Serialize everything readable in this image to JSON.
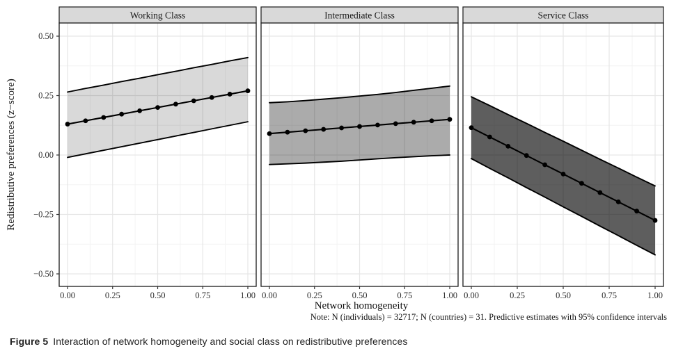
{
  "figure": {
    "caption_label": "Figure 5",
    "caption_text": "Interaction of network homogeneity and social class on redistributive preferences"
  },
  "chart_data": {
    "type": "line",
    "description": "Faceted line chart with 95% confidence ribbons, ggplot style, three facets by social class",
    "xlabel": "Network homogeneity",
    "ylabel": "Redistributive preferences (z−score)",
    "note": "Note: N (individuals) = 32717; N (countries) = 31. Predictive estimates with 95% confidence intervals",
    "x": [
      0,
      0.1,
      0.2,
      0.3,
      0.4,
      0.5,
      0.6,
      0.7,
      0.8,
      0.9,
      1.0
    ],
    "x_ticks": [
      {
        "v": 0.0,
        "label": "0.00"
      },
      {
        "v": 0.25,
        "label": "0.25"
      },
      {
        "v": 0.5,
        "label": "0.50"
      },
      {
        "v": 0.75,
        "label": "0.75"
      },
      {
        "v": 1.0,
        "label": "1.00"
      }
    ],
    "y_ticks": [
      {
        "v": 0.5,
        "label": "0.50"
      },
      {
        "v": 0.25,
        "label": "0.25"
      },
      {
        "v": 0.0,
        "label": "0.00"
      },
      {
        "v": -0.25,
        "label": "−0.25"
      },
      {
        "v": -0.5,
        "label": "−0.50"
      }
    ],
    "x_minor": [
      0.125,
      0.375,
      0.625,
      0.875
    ],
    "y_minor": [
      0.375,
      0.125,
      -0.125,
      -0.375
    ],
    "ylim": [
      -0.553,
      0.556
    ],
    "xlim": [
      -0.046,
      1.046
    ],
    "grid_on": true,
    "legend": "none",
    "colors": {
      "strip_bg": "#d9d9d9",
      "panel_border": "#1a1a1a",
      "grid_major": "#e6e6e6",
      "grid_minor": "#f3f3f3",
      "line": "#000000",
      "tick_text": "#303030"
    },
    "series": [
      {
        "name": "Working Class",
        "ribbon_color": "rgba(0,0,0,0.15)",
        "estimate": [
          0.13,
          0.144,
          0.158,
          0.172,
          0.186,
          0.2,
          0.214,
          0.228,
          0.242,
          0.256,
          0.27
        ],
        "upper": [
          0.265,
          0.28,
          0.294,
          0.309,
          0.323,
          0.338,
          0.352,
          0.367,
          0.381,
          0.396,
          0.41
        ],
        "lower": [
          -0.01,
          0.005,
          0.02,
          0.035,
          0.05,
          0.065,
          0.08,
          0.095,
          0.11,
          0.125,
          0.14
        ]
      },
      {
        "name": "Intermediate Class",
        "ribbon_color": "rgba(0,0,0,0.33)",
        "estimate": [
          0.09,
          0.096,
          0.102,
          0.108,
          0.114,
          0.12,
          0.126,
          0.132,
          0.138,
          0.144,
          0.15
        ],
        "upper": [
          0.22,
          0.224,
          0.229,
          0.235,
          0.241,
          0.248,
          0.255,
          0.263,
          0.272,
          0.281,
          0.29
        ],
        "lower": [
          -0.04,
          -0.037,
          -0.034,
          -0.03,
          -0.026,
          -0.021,
          -0.016,
          -0.011,
          -0.007,
          -0.003,
          0.0
        ]
      },
      {
        "name": "Service Class",
        "ribbon_color": "rgba(0,0,0,0.63)",
        "estimate": [
          0.115,
          0.076,
          0.037,
          -0.002,
          -0.041,
          -0.08,
          -0.119,
          -0.158,
          -0.197,
          -0.236,
          -0.275
        ],
        "upper": [
          0.245,
          0.208,
          0.17,
          0.133,
          0.095,
          0.058,
          0.02,
          -0.018,
          -0.055,
          -0.093,
          -0.13
        ],
        "lower": [
          -0.015,
          -0.056,
          -0.096,
          -0.137,
          -0.177,
          -0.218,
          -0.258,
          -0.299,
          -0.339,
          -0.38,
          -0.42
        ]
      }
    ]
  }
}
